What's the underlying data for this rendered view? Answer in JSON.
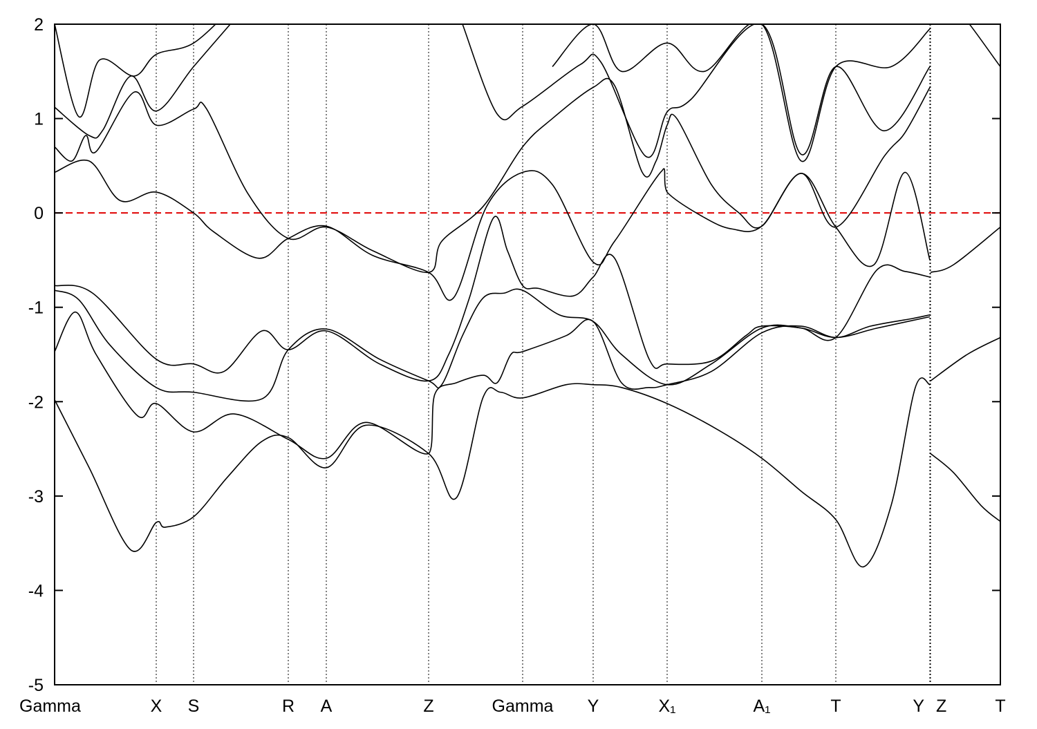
{
  "chart_data": {
    "type": "line",
    "xlim": [
      0,
      13.68
    ],
    "ylim": [
      -5,
      2
    ],
    "xticks": [
      {
        "value": 0,
        "label": "Gamma"
      },
      {
        "value": 1.47,
        "label": "X"
      },
      {
        "value": 2.01,
        "label": "S"
      },
      {
        "value": 3.38,
        "label": "R"
      },
      {
        "value": 3.93,
        "label": "A"
      },
      {
        "value": 5.41,
        "label": "Z"
      },
      {
        "value": 6.77,
        "label": "Gamma"
      },
      {
        "value": 7.79,
        "label": "Y"
      },
      {
        "value": 8.86,
        "label": "X₁"
      },
      {
        "value": 10.23,
        "label": "A₁"
      },
      {
        "value": 11.3,
        "label": "T"
      },
      {
        "value": 12.66,
        "label": "Y"
      },
      {
        "value": 12.67,
        "label": "Z"
      },
      {
        "value": 13.68,
        "label": "T"
      }
    ],
    "yticks": [
      2,
      1,
      0,
      -1,
      -2,
      -3,
      -4,
      -5
    ],
    "xgrid": true,
    "reference_line": {
      "y": 0,
      "color": "#e00000"
    },
    "series": [
      {
        "color": "#000000",
        "x": [
          0,
          0.5,
          1.1,
          1.47,
          1.6,
          2.01,
          2.5,
          3.0,
          3.38,
          3.93,
          4.5,
          5.41,
          5.81,
          6.2,
          6.45,
          6.77,
          7.4,
          7.79,
          8.2,
          8.86,
          9.6,
          10.23,
          10.8,
          11.3,
          11.7,
          12.1,
          12.45,
          12.66,
          null,
          12.67,
          13.0,
          13.4,
          13.68
        ],
        "values": [
          -1.98,
          -2.7,
          -3.57,
          -3.28,
          -3.33,
          -3.22,
          -2.8,
          -2.42,
          -2.38,
          -2.7,
          -2.25,
          -2.55,
          -3.02,
          -1.95,
          -1.9,
          -1.96,
          -1.82,
          -1.82,
          -1.85,
          -2.02,
          -2.3,
          -2.6,
          -2.95,
          -3.25,
          -3.75,
          -3.1,
          -1.85,
          -1.82,
          null,
          -2.55,
          -2.75,
          -3.1,
          -3.27
        ]
      },
      {
        "color": "#000000",
        "x": [
          0,
          0.3,
          0.6,
          1.2,
          1.47,
          2.01,
          2.6,
          3.38,
          3.93,
          4.5,
          5.41,
          5.5,
          5.81,
          6.2,
          6.4,
          6.6,
          6.77,
          7.4,
          7.79,
          8.2,
          8.6,
          8.86,
          9.5,
          10.23,
          10.8,
          11.3,
          11.8,
          12.4,
          12.66
        ],
        "values": [
          -1.47,
          -1.05,
          -1.5,
          -2.15,
          -2.02,
          -2.32,
          -2.13,
          -2.4,
          -2.6,
          -2.22,
          -2.55,
          -1.92,
          -1.8,
          -1.72,
          -1.8,
          -1.5,
          -1.47,
          -1.3,
          -1.15,
          -1.8,
          -1.85,
          -1.82,
          -1.68,
          -1.27,
          -1.2,
          -1.32,
          -1.2,
          -1.12,
          -1.08
        ]
      },
      {
        "color": "#000000",
        "x": [
          0,
          0.55,
          1.47,
          2.01,
          2.45,
          3.0,
          3.38,
          3.93,
          4.7,
          5.41,
          5.7,
          6.0,
          6.35,
          6.55,
          6.77,
          7.0,
          7.5,
          7.79,
          8.1,
          8.6,
          8.86,
          9.5,
          10.0,
          10.23,
          10.8,
          11.3,
          11.9,
          12.3,
          12.66,
          null,
          12.67,
          13.0,
          13.68
        ],
        "values": [
          -0.77,
          -0.85,
          -1.55,
          -1.6,
          -1.68,
          -1.25,
          -1.45,
          -1.25,
          -1.6,
          -1.78,
          -1.5,
          -0.9,
          -0.05,
          -0.4,
          -0.77,
          -0.8,
          -0.88,
          -0.68,
          -0.48,
          -1.55,
          -1.6,
          -1.57,
          -1.3,
          -1.2,
          -1.22,
          -1.32,
          -0.6,
          -0.62,
          -0.68,
          null,
          -0.63,
          -0.55,
          -0.15
        ]
      },
      {
        "color": "#000000",
        "x": [
          0,
          0.35,
          0.8,
          1.47,
          2.01,
          3.0,
          3.38,
          3.93,
          4.7,
          5.41,
          5.6,
          5.9,
          6.2,
          6.5,
          6.77,
          7.3,
          7.79,
          8.2,
          8.86,
          9.5,
          10.23,
          10.8,
          11.3,
          11.9,
          12.66,
          null,
          12.67,
          13.2,
          13.68
        ],
        "values": [
          -0.82,
          -0.92,
          -1.4,
          -1.85,
          -1.9,
          -1.97,
          -1.45,
          -1.23,
          -1.55,
          -1.78,
          -1.82,
          -1.3,
          -0.9,
          -0.85,
          -0.82,
          -1.08,
          -1.15,
          -1.5,
          -1.82,
          -1.6,
          -1.22,
          -1.22,
          -1.32,
          -1.22,
          -1.1,
          null,
          -1.78,
          -1.5,
          -1.32
        ]
      },
      {
        "color": "#000000",
        "x": [
          0,
          0.5,
          0.95,
          1.47,
          2.01,
          2.3,
          2.95,
          3.38,
          3.93,
          4.6,
          5.41,
          5.77,
          6.25,
          6.77,
          7.2,
          7.79,
          8.1,
          8.79,
          8.86,
          9.4,
          9.8,
          10.23,
          10.8,
          11.3,
          11.85,
          12.3,
          12.66
        ],
        "values": [
          0.43,
          0.55,
          0.13,
          0.22,
          0,
          -0.2,
          -0.48,
          -0.27,
          -0.14,
          -0.45,
          -0.63,
          -0.9,
          0.07,
          0.43,
          0.3,
          -0.52,
          -0.3,
          0.45,
          0.22,
          -0.05,
          -0.17,
          -0.14,
          0.42,
          -0.15,
          -0.55,
          0.43,
          -0.5
        ]
      },
      {
        "color": "#000000",
        "x": [
          0,
          0.25,
          0.45,
          0.6,
          1.15,
          1.47,
          2.01,
          2.2,
          2.8,
          3.38,
          3.93,
          4.6,
          5.41,
          5.6,
          6.2,
          6.77,
          7.2,
          7.79,
          8.1,
          8.5,
          8.7,
          8.86,
          9.0,
          9.5,
          9.9,
          10.23,
          10.8,
          11.3,
          12.0,
          12.3,
          12.66
        ],
        "values": [
          0.7,
          0.55,
          0.82,
          0.65,
          1.28,
          0.93,
          1.1,
          1.1,
          0.2,
          -0.27,
          -0.15,
          -0.4,
          -0.63,
          -0.3,
          0.07,
          0.7,
          1.0,
          1.33,
          1.35,
          0.43,
          0.55,
          0.93,
          1.0,
          0.3,
          0,
          -0.14,
          0.42,
          -0.15,
          0.6,
          0.85,
          1.33
        ]
      },
      {
        "color": "#000000",
        "x": [
          0,
          0.5,
          0.7,
          1.1,
          1.47,
          2.01,
          2.6,
          null,
          5.9,
          6.4,
          6.77,
          7.6,
          7.9,
          8.55,
          8.86,
          9.2,
          10.23,
          10.8,
          11.3,
          12.0,
          12.66
        ],
        "values": [
          1.12,
          0.82,
          0.88,
          1.45,
          1.08,
          1.55,
          2.05,
          null,
          2.0,
          1.05,
          1.13,
          1.57,
          1.6,
          0.6,
          1.07,
          1.2,
          2.0,
          0.62,
          1.55,
          0.87,
          1.55
        ]
      },
      {
        "color": "#000000",
        "x": [
          0,
          0.35,
          0.65,
          1.15,
          1.47,
          2.01,
          2.6,
          null,
          7.2,
          7.79,
          8.2,
          8.86,
          9.4,
          10.23,
          10.8,
          11.3,
          12.1,
          12.66,
          null,
          12.67,
          13.0,
          13.68
        ],
        "values": [
          2.0,
          1.02,
          1.62,
          1.45,
          1.68,
          1.8,
          2.2,
          null,
          1.55,
          2.0,
          1.5,
          1.8,
          1.5,
          2.0,
          0.55,
          1.55,
          1.55,
          1.95,
          null,
          2.2,
          2.2,
          1.55
        ]
      }
    ]
  }
}
